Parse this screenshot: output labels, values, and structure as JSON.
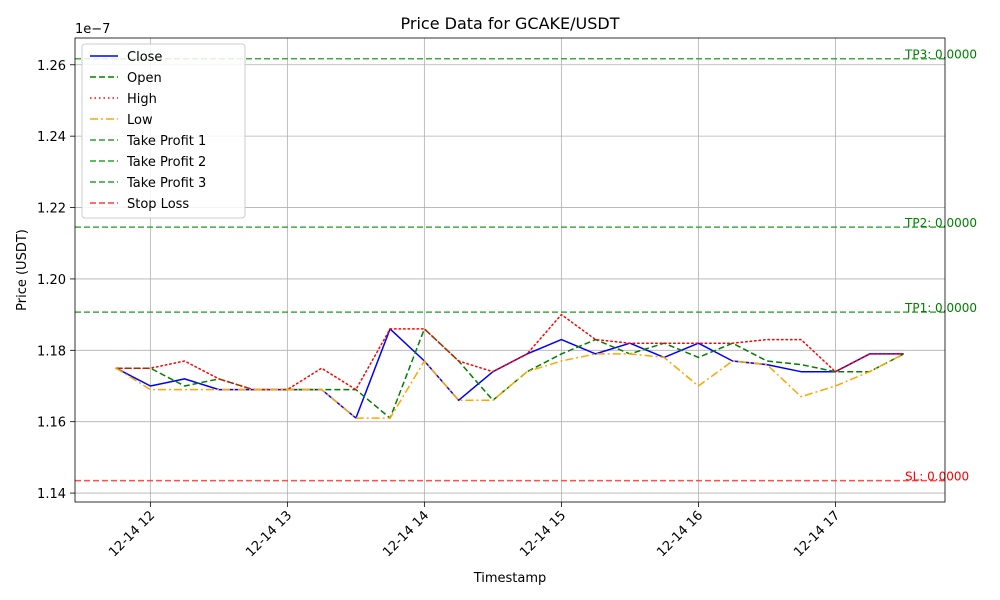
{
  "chart_data": {
    "type": "line",
    "title": "Price Data for GCAKE/USDT",
    "xlabel": "Timestamp",
    "ylabel": "Price (USDT)",
    "y_multiplier_label": "1e−7",
    "ylim": [
      1.1375,
      1.2675
    ],
    "xlim": [
      "2024-12-14 11:27",
      "2024-12-14 17:48"
    ],
    "grid": true,
    "legend_position": "upper-left",
    "y_ticks": [
      1.14,
      1.16,
      1.18,
      1.2,
      1.22,
      1.24,
      1.26
    ],
    "y_tick_labels": [
      "1.14",
      "1.16",
      "1.18",
      "1.20",
      "1.22",
      "1.24",
      "1.26"
    ],
    "x_ticks": [
      "2024-12-14 12:00",
      "2024-12-14 13:00",
      "2024-12-14 14:00",
      "2024-12-14 15:00",
      "2024-12-14 16:00",
      "2024-12-14 17:00"
    ],
    "x_tick_labels": [
      "12-14 12",
      "12-14 13",
      "12-14 14",
      "12-14 15",
      "12-14 16",
      "12-14 17"
    ],
    "x": [
      "2024-12-14 11:45",
      "2024-12-14 12:00",
      "2024-12-14 12:15",
      "2024-12-14 12:30",
      "2024-12-14 12:45",
      "2024-12-14 13:00",
      "2024-12-14 13:15",
      "2024-12-14 13:30",
      "2024-12-14 13:45",
      "2024-12-14 14:00",
      "2024-12-14 14:15",
      "2024-12-14 14:30",
      "2024-12-14 14:45",
      "2024-12-14 15:00",
      "2024-12-14 15:15",
      "2024-12-14 15:30",
      "2024-12-14 15:45",
      "2024-12-14 16:00",
      "2024-12-14 16:15",
      "2024-12-14 16:30",
      "2024-12-14 16:45",
      "2024-12-14 17:00",
      "2024-12-14 17:15",
      "2024-12-14 17:30"
    ],
    "series": [
      {
        "name": "Close",
        "color": "#0000ff",
        "dash": "solid",
        "values": [
          1.175,
          1.17,
          1.172,
          1.169,
          1.169,
          1.169,
          1.169,
          1.161,
          1.186,
          1.177,
          1.166,
          1.174,
          1.179,
          1.183,
          1.179,
          1.182,
          1.178,
          1.182,
          1.177,
          1.176,
          1.174,
          1.174,
          1.179,
          1.179
        ]
      },
      {
        "name": "Open",
        "color": "#008000",
        "dash": "dashed",
        "values": [
          1.175,
          1.175,
          1.17,
          1.172,
          1.169,
          1.169,
          1.169,
          1.169,
          1.161,
          1.186,
          1.177,
          1.166,
          1.174,
          1.179,
          1.183,
          1.179,
          1.182,
          1.178,
          1.182,
          1.177,
          1.176,
          1.174,
          1.174,
          1.179
        ]
      },
      {
        "name": "High",
        "color": "#ff0000",
        "dash": "dotted",
        "values": [
          1.175,
          1.175,
          1.177,
          1.172,
          1.169,
          1.169,
          1.175,
          1.169,
          1.186,
          1.186,
          1.177,
          1.174,
          1.179,
          1.19,
          1.183,
          1.182,
          1.182,
          1.182,
          1.182,
          1.183,
          1.183,
          1.174,
          1.179,
          1.179
        ]
      },
      {
        "name": "Low",
        "color": "#ffa500",
        "dash": "dashdot",
        "values": [
          1.175,
          1.169,
          1.169,
          1.169,
          1.169,
          1.169,
          1.169,
          1.161,
          1.161,
          1.177,
          1.166,
          1.166,
          1.174,
          1.177,
          1.179,
          1.179,
          1.178,
          1.17,
          1.177,
          1.176,
          1.167,
          1.17,
          1.174,
          1.179
        ]
      }
    ],
    "levels": [
      {
        "name": "Take Profit 1",
        "value": 1.1907,
        "color": "#2ca02c",
        "label": "TP1: 0.0000"
      },
      {
        "name": "Take Profit 2",
        "value": 1.2145,
        "color": "#2ca02c",
        "label": "TP2: 0.0000"
      },
      {
        "name": "Take Profit 3",
        "value": 1.2617,
        "color": "#2ca02c",
        "label": "TP3: 0.0000"
      },
      {
        "name": "Stop Loss",
        "value": 1.1435,
        "color": "#ff3b3b",
        "label": "SL: 0.0000"
      }
    ],
    "level_label_colors": {
      "take_profit": "#008000",
      "stop_loss": "#ff0000"
    }
  }
}
